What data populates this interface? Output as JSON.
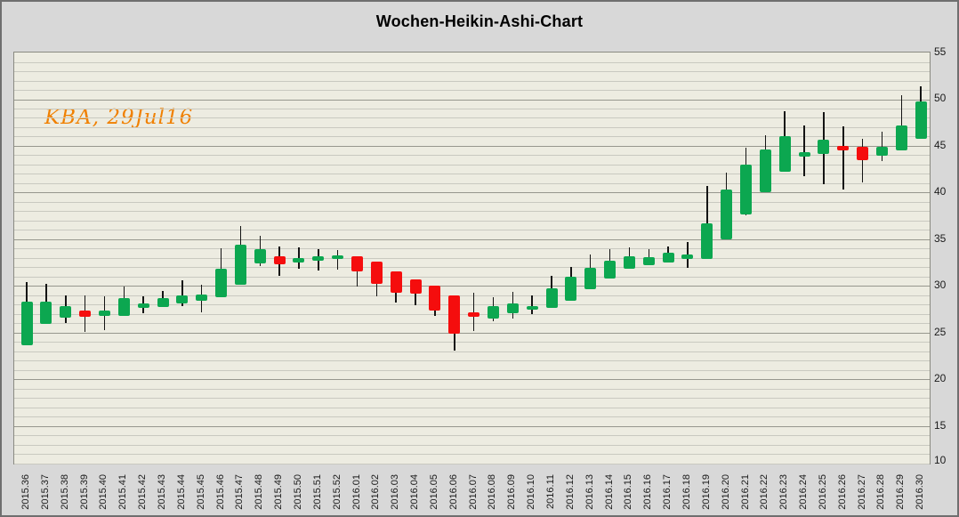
{
  "window": {
    "title": "Wochen-Heikin-Ashi-Chart",
    "watermark": "KBA, 29Jul16"
  },
  "colors": {
    "up": "#0ca750",
    "down": "#f50d0d",
    "wick": "#141414",
    "plot_background": "#edece1",
    "outer_background": "#d8d8d8",
    "grid_minor": "#c9c9c0",
    "grid_major": "#97978e",
    "watermark": "#f08000"
  },
  "chart_data": {
    "type": "candlestick",
    "subtype": "heikin-ashi-weekly",
    "title": "Wochen-Heikin-Ashi-Chart",
    "annotation": "KBA, 29Jul16",
    "xlabel": "",
    "ylabel": "",
    "ylim": [
      10,
      55
    ],
    "grid": "horizontal, minor every 1 unit, major every 5 units",
    "legend": "none",
    "y_axis": {
      "side": "right",
      "ticks": [
        55,
        50,
        45,
        40,
        35,
        30,
        25,
        20,
        15,
        10
      ]
    },
    "x_axis": {
      "label_rotation_deg": -90
    },
    "categories": [
      "2015.36",
      "2015.37",
      "2015.38",
      "2015.39",
      "2015.40",
      "2015.41",
      "2015.42",
      "2015.43",
      "2015.44",
      "2015.45",
      "2015.46",
      "2015.47",
      "2015.48",
      "2015.49",
      "2015.50",
      "2015.51",
      "2015.52",
      "2016.01",
      "2016.02",
      "2016.03",
      "2016.04",
      "2016.05",
      "2016.06",
      "2016.07",
      "2016.08",
      "2016.09",
      "2016.10",
      "2016.11",
      "2016.12",
      "2016.13",
      "2016.14",
      "2016.15",
      "2016.16",
      "2016.17",
      "2016.18",
      "2016.19",
      "2016.20",
      "2016.21",
      "2016.22",
      "2016.23",
      "2016.24",
      "2016.25",
      "2016.26",
      "2016.27",
      "2016.28",
      "2016.29",
      "2016.30"
    ],
    "candles": [
      {
        "week": "2015.36",
        "open": 23.6,
        "high": 30.4,
        "low": 23.6,
        "close": 28.3,
        "dir": "up"
      },
      {
        "week": "2015.37",
        "open": 25.9,
        "high": 30.2,
        "low": 25.9,
        "close": 28.3,
        "dir": "up"
      },
      {
        "week": "2015.38",
        "open": 26.6,
        "high": 29.0,
        "low": 26.0,
        "close": 27.8,
        "dir": "up"
      },
      {
        "week": "2015.39",
        "open": 27.4,
        "high": 29.0,
        "low": 25.1,
        "close": 26.7,
        "dir": "down"
      },
      {
        "week": "2015.40",
        "open": 26.8,
        "high": 28.9,
        "low": 25.3,
        "close": 27.4,
        "dir": "up"
      },
      {
        "week": "2015.41",
        "open": 26.8,
        "high": 29.9,
        "low": 26.8,
        "close": 28.7,
        "dir": "up"
      },
      {
        "week": "2015.42",
        "open": 27.6,
        "high": 28.9,
        "low": 27.1,
        "close": 28.1,
        "dir": "up"
      },
      {
        "week": "2015.43",
        "open": 27.7,
        "high": 29.5,
        "low": 27.7,
        "close": 28.7,
        "dir": "up"
      },
      {
        "week": "2015.44",
        "open": 28.1,
        "high": 30.6,
        "low": 27.8,
        "close": 29.0,
        "dir": "up"
      },
      {
        "week": "2015.45",
        "open": 28.4,
        "high": 30.1,
        "low": 27.2,
        "close": 29.1,
        "dir": "up"
      },
      {
        "week": "2015.46",
        "open": 28.8,
        "high": 34.0,
        "low": 28.8,
        "close": 31.8,
        "dir": "up"
      },
      {
        "week": "2015.47",
        "open": 30.1,
        "high": 36.4,
        "low": 30.1,
        "close": 34.4,
        "dir": "up"
      },
      {
        "week": "2015.48",
        "open": 32.4,
        "high": 35.4,
        "low": 32.1,
        "close": 33.9,
        "dir": "up"
      },
      {
        "week": "2015.49",
        "open": 33.2,
        "high": 34.2,
        "low": 31.1,
        "close": 32.3,
        "dir": "down"
      },
      {
        "week": "2015.50",
        "open": 32.5,
        "high": 34.1,
        "low": 31.8,
        "close": 33.0,
        "dir": "up"
      },
      {
        "week": "2015.51",
        "open": 32.7,
        "high": 33.9,
        "low": 31.6,
        "close": 33.2,
        "dir": "up"
      },
      {
        "week": "2015.52",
        "open": 32.9,
        "high": 33.8,
        "low": 31.7,
        "close": 33.3,
        "dir": "up"
      },
      {
        "week": "2016.01",
        "open": 33.2,
        "high": 33.2,
        "low": 29.9,
        "close": 31.5,
        "dir": "down"
      },
      {
        "week": "2016.02",
        "open": 32.6,
        "high": 32.6,
        "low": 28.9,
        "close": 30.2,
        "dir": "down"
      },
      {
        "week": "2016.03",
        "open": 31.6,
        "high": 31.6,
        "low": 28.2,
        "close": 29.3,
        "dir": "down"
      },
      {
        "week": "2016.04",
        "open": 30.7,
        "high": 30.7,
        "low": 27.9,
        "close": 29.2,
        "dir": "down"
      },
      {
        "week": "2016.05",
        "open": 30.0,
        "high": 30.0,
        "low": 26.8,
        "close": 27.4,
        "dir": "down"
      },
      {
        "week": "2016.06",
        "open": 29.0,
        "high": 29.0,
        "low": 23.1,
        "close": 24.9,
        "dir": "down"
      },
      {
        "week": "2016.07",
        "open": 27.2,
        "high": 29.3,
        "low": 25.2,
        "close": 26.7,
        "dir": "down"
      },
      {
        "week": "2016.08",
        "open": 26.5,
        "high": 28.8,
        "low": 26.2,
        "close": 27.8,
        "dir": "up"
      },
      {
        "week": "2016.09",
        "open": 27.1,
        "high": 29.4,
        "low": 26.5,
        "close": 28.1,
        "dir": "up"
      },
      {
        "week": "2016.10",
        "open": 27.4,
        "high": 29.0,
        "low": 27.0,
        "close": 27.8,
        "dir": "up"
      },
      {
        "week": "2016.11",
        "open": 27.6,
        "high": 31.1,
        "low": 27.6,
        "close": 29.7,
        "dir": "up"
      },
      {
        "week": "2016.12",
        "open": 28.4,
        "high": 32.0,
        "low": 28.4,
        "close": 31.0,
        "dir": "up"
      },
      {
        "week": "2016.13",
        "open": 29.6,
        "high": 33.4,
        "low": 29.6,
        "close": 31.9,
        "dir": "up"
      },
      {
        "week": "2016.14",
        "open": 30.8,
        "high": 33.9,
        "low": 30.8,
        "close": 32.7,
        "dir": "up"
      },
      {
        "week": "2016.15",
        "open": 31.8,
        "high": 34.1,
        "low": 31.8,
        "close": 33.2,
        "dir": "up"
      },
      {
        "week": "2016.16",
        "open": 32.2,
        "high": 33.9,
        "low": 32.2,
        "close": 33.1,
        "dir": "up"
      },
      {
        "week": "2016.17",
        "open": 32.5,
        "high": 34.2,
        "low": 32.5,
        "close": 33.6,
        "dir": "up"
      },
      {
        "week": "2016.18",
        "open": 32.9,
        "high": 34.7,
        "low": 31.9,
        "close": 33.4,
        "dir": "up"
      },
      {
        "week": "2016.19",
        "open": 32.9,
        "high": 40.7,
        "low": 32.9,
        "close": 36.7,
        "dir": "up"
      },
      {
        "week": "2016.20",
        "open": 35.0,
        "high": 42.1,
        "low": 35.0,
        "close": 40.3,
        "dir": "up"
      },
      {
        "week": "2016.21",
        "open": 37.6,
        "high": 44.8,
        "low": 37.6,
        "close": 43.0,
        "dir": "up"
      },
      {
        "week": "2016.22",
        "open": 40.0,
        "high": 46.1,
        "low": 40.0,
        "close": 44.6,
        "dir": "up"
      },
      {
        "week": "2016.23",
        "open": 42.2,
        "high": 48.7,
        "low": 42.2,
        "close": 46.0,
        "dir": "up"
      },
      {
        "week": "2016.24",
        "open": 43.8,
        "high": 47.2,
        "low": 41.7,
        "close": 44.3,
        "dir": "up"
      },
      {
        "week": "2016.25",
        "open": 44.1,
        "high": 48.6,
        "low": 40.9,
        "close": 45.7,
        "dir": "up"
      },
      {
        "week": "2016.26",
        "open": 45.0,
        "high": 47.1,
        "low": 40.3,
        "close": 44.5,
        "dir": "down"
      },
      {
        "week": "2016.27",
        "open": 44.9,
        "high": 45.8,
        "low": 41.1,
        "close": 43.5,
        "dir": "down"
      },
      {
        "week": "2016.28",
        "open": 43.9,
        "high": 46.5,
        "low": 43.4,
        "close": 44.9,
        "dir": "up"
      },
      {
        "week": "2016.29",
        "open": 44.5,
        "high": 50.4,
        "low": 44.5,
        "close": 47.2,
        "dir": "up"
      },
      {
        "week": "2016.30",
        "open": 45.8,
        "high": 51.4,
        "low": 45.8,
        "close": 49.8,
        "dir": "up"
      }
    ]
  }
}
